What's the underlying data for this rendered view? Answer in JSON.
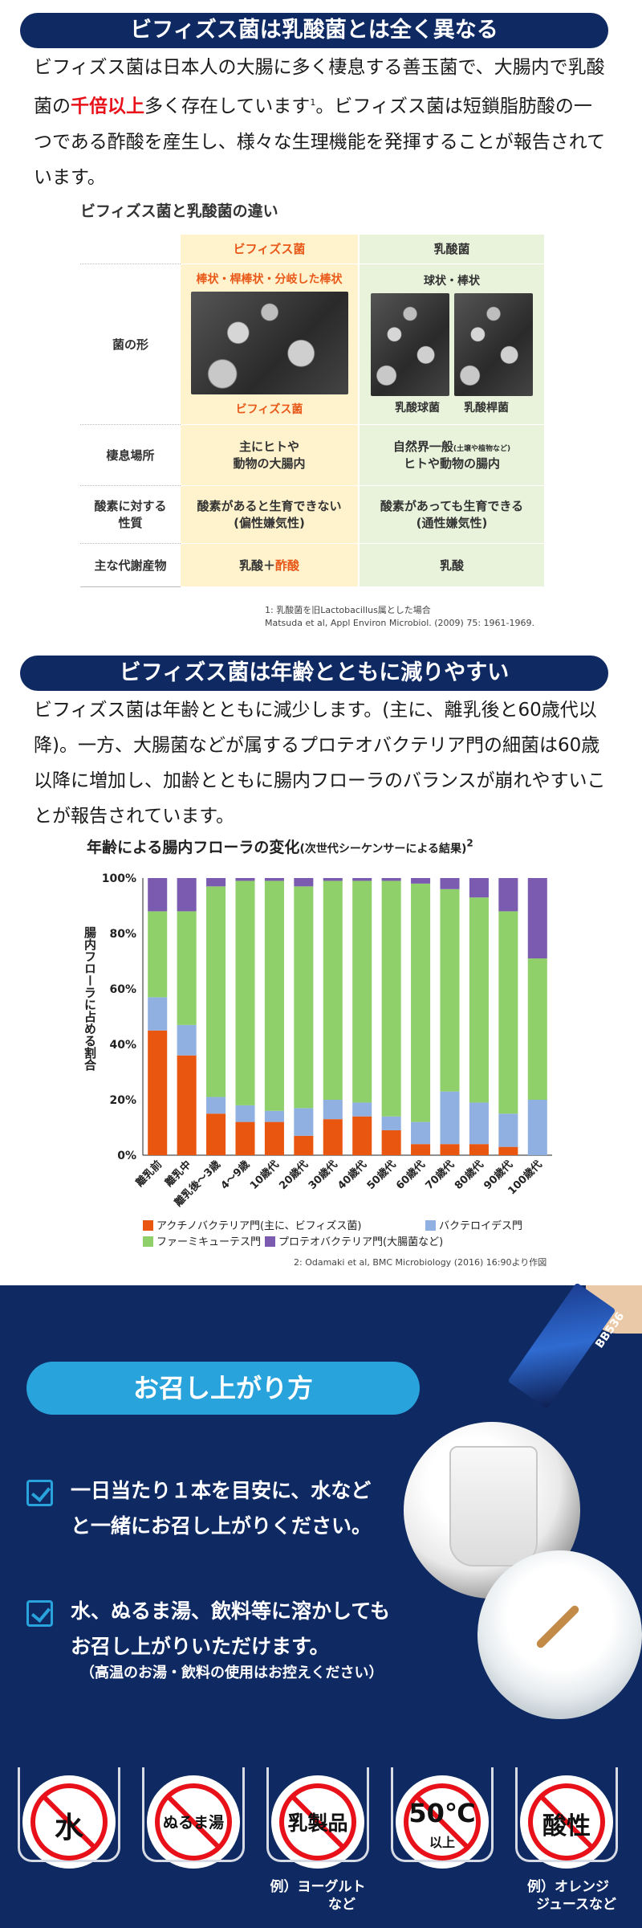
{
  "section1": {
    "heading": "ビフィズス菌は乳酸菌とは全く異なる",
    "para_a": "ビフィズス菌は日本人の大腸に多く棲息する善玉菌で、大腸内で乳酸菌の",
    "para_hl": "千倍以上",
    "para_b": "多く存在しています",
    "para_sup": "1",
    "para_c": "。ビフィズス菌は短鎖脂肪酸の一つである酢酸を産生し、様々な生理機能を発揮することが報告されています。"
  },
  "table": {
    "title": "ビフィズス菌と乳酸菌の違い",
    "col_bifi": "ビフィズス菌",
    "col_lact": "乳酸菌",
    "rows": {
      "shape_label": "菌の形",
      "shape_bifi": "棒状・桿棒状・分岐した棒状",
      "shape_lact": "球状・棒状",
      "cap_bifi": "ビフィズス菌",
      "cap_lact1": "乳酸球菌",
      "cap_lact2": "乳酸桿菌",
      "habitat_label": "棲息場所",
      "habitat_bifi": "主にヒトや\n動物の大腸内",
      "habitat_lact_a": "自然界一般",
      "habitat_lact_small": "(土壌や植物など)",
      "habitat_lact_b": "ヒトや動物の腸内",
      "oxygen_label": "酸素に対する\n性質",
      "oxygen_bifi": "酸素があると生育できない\n(偏性嫌気性)",
      "oxygen_lact": "酸素があっても生育できる\n(通性嫌気性)",
      "metab_label": "主な代謝産物",
      "metab_bifi_a": "乳酸＋",
      "metab_bifi_b": "酢酸",
      "metab_lact": "乳酸"
    },
    "note1": "1: 乳酸菌を旧Lactobacillus属とした場合",
    "note2": "Matsuda et al, Appl Environ Microbiol. (2009) 75: 1961-1969."
  },
  "section2": {
    "heading": "ビフィズス菌は年齢とともに減りやすい",
    "para": "ビフィズス菌は年齢とともに減少します。(主に、離乳後と60歳代以降)。一方、大腸菌などが属するプロテオバクテリア門の細菌は60歳以降に増加し、加齢とともに腸内フローラのバランスが崩れやすいことが報告されています。"
  },
  "chart_data": {
    "type": "bar",
    "stacked": true,
    "title": "年齢による腸内フローラの変化",
    "title_sub": "(次世代シーケンサーによる結果)",
    "title_sup": "2",
    "ylabel": "腸内フローラに占める割合",
    "ylim": [
      0,
      100
    ],
    "yticks": [
      "0%",
      "20%",
      "40%",
      "60%",
      "80%",
      "100%"
    ],
    "categories": [
      "離乳前",
      "離乳中",
      "離乳後～3歳",
      "4～9歳",
      "10歳代",
      "20歳代",
      "30歳代",
      "40歳代",
      "50歳代",
      "60歳代",
      "70歳代",
      "80歳代",
      "90歳代",
      "100歳代"
    ],
    "series": [
      {
        "name": "アクチノバクテリア門(主に、ビフィズス菌)",
        "color": "#e8560f",
        "values": [
          45,
          36,
          15,
          12,
          12,
          7,
          13,
          14,
          9,
          4,
          4,
          4,
          3,
          0
        ]
      },
      {
        "name": "バクテロイデス門",
        "color": "#8fb0e0",
        "values": [
          12,
          11,
          6,
          6,
          4,
          10,
          7,
          5,
          5,
          8,
          19,
          15,
          12,
          20
        ]
      },
      {
        "name": "ファーミキューテス門",
        "color": "#8fd06a",
        "values": [
          31,
          41,
          76,
          81,
          83,
          80,
          79,
          80,
          85,
          86,
          73,
          74,
          73,
          51
        ]
      },
      {
        "name": "プロテオバクテリア門(大腸菌など)",
        "color": "#7a5bb0",
        "values": [
          12,
          12,
          3,
          1,
          1,
          3,
          1,
          1,
          1,
          2,
          4,
          7,
          12,
          29
        ]
      }
    ],
    "legend": "bottom",
    "grid": false
  },
  "ref2": "2: Odamaki et al, BMC Microbiology (2016) 16:90より作図",
  "usage": {
    "title": "お召し上がり方",
    "item1_l1": "一日当たり１本を目安に、水など",
    "item1_l2": "と一緒にお召し上がりください。",
    "item2_l1": "水、ぬるま湯、飲料等に溶かしても",
    "item2_l2": "お召し上がりいただけます。",
    "note": "（高温のお湯・飲料の使用はお控えください）",
    "stick_label": "BB536",
    "icons": [
      {
        "label": "水"
      },
      {
        "label": "ぬるま湯"
      },
      {
        "label": "乳製品"
      },
      {
        "label": "50℃",
        "sub": "以上"
      },
      {
        "label": "酸性"
      }
    ],
    "cap_dairy_l1": "例）ヨーグルト",
    "cap_dairy_l2": "など",
    "cap_acid_l1": "例）オレンジ",
    "cap_acid_l2": "ジュースなど"
  }
}
